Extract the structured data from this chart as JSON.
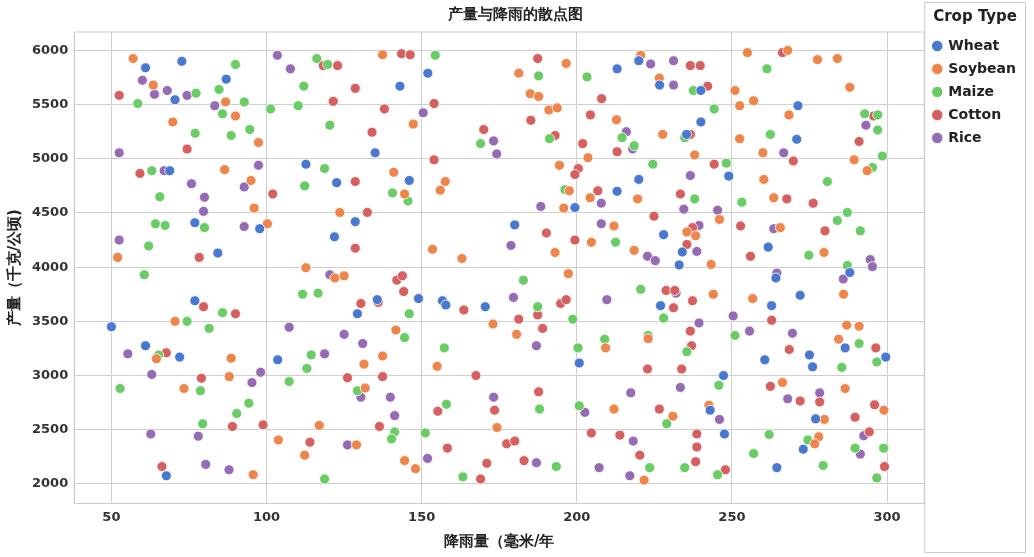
{
  "chart_data": {
    "type": "scatter",
    "title": "产量与降雨的散点图",
    "xlabel": "降雨量（毫米/年",
    "ylabel": "产量（千克/公顷)",
    "legend_title": "Crop Type",
    "legend": "top right",
    "grid": true,
    "marker": "circle",
    "xlim": [
      38,
      312
    ],
    "xticks": [
      50,
      100,
      150,
      200,
      250,
      300
    ],
    "ylim": [
      1820,
      6170
    ],
    "yticks": [
      2000,
      2500,
      3000,
      3500,
      4000,
      4500,
      5000,
      5500,
      6000
    ],
    "series": [
      {
        "name": "Wheat",
        "color": "#4878d0",
        "x": [
          50,
          61,
          72.7,
          76.9,
          76.9,
          61,
          72,
          67.7,
          68.8,
          70.5,
          84.3,
          87,
          97.8,
          103.6,
          112.7,
          121.9,
          122.6,
          128.6,
          129.3,
          135,
          135.7,
          143,
          146,
          149,
          152,
          156.7,
          157.8,
          170.5,
          180,
          199.4,
          200.8,
          213,
          213,
          220,
          220,
          228,
          233,
          234,
          227,
          226.7,
          235.4,
          240,
          240,
          243,
          247.6,
          247.3,
          249,
          261.7,
          262.8,
          264.2,
          260.6,
          264.5,
          270.9,
          271.3,
          272,
          273,
          275,
          276,
          277,
          286.5,
          288,
          299.6
        ],
        "values": [
          3450,
          5840,
          5900,
          3690,
          4410,
          3275,
          3170,
          2075,
          4890,
          5545,
          4130,
          5735,
          4355,
          3145,
          4950,
          4280,
          4780,
          4420,
          3570,
          5055,
          3700,
          5670,
          4800,
          3710,
          5790,
          3690,
          3650,
          3635,
          4390,
          4550,
          3115,
          5830,
          4700,
          4810,
          5905,
          4300,
          4020,
          4140,
          3645,
          5680,
          5225,
          5630,
          5340,
          2680,
          2460,
          3000,
          4840,
          4185,
          3645,
          3900,
          3145,
          2150,
          5180,
          5490,
          3740,
          2320,
          3190,
          3080,
          2600,
          3255,
          3950,
          3170
        ]
      },
      {
        "name": "Soybean",
        "color": "#ee854a",
        "x": [
          52,
          57,
          63.5,
          69.8,
          86.8,
          90,
          97.4,
          86.5,
          95,
          96,
          100.3,
          123.6,
          137.4,
          147.3,
          141,
          144.5,
          157.6,
          156,
          153.5,
          163,
          181.3,
          185,
          187.7,
          191,
          193.7,
          196.6,
          194.4,
          197.6,
          195.8,
          203.6,
          204.3,
          212.8,
          212,
          204.7,
          193,
          220.6,
          226.6,
          227.7,
          238,
          219.6,
          246,
          235.5,
          238.3,
          218.5,
          243.3,
          251,
          255,
          268,
          252.5,
          257,
          268.4,
          252.5,
          260,
          277.6,
          284,
          288,
          289.4,
          293.6,
          260.3,
          263.5,
          265.6,
          279.7,
          70.5,
          88.6,
          88,
          73.4,
          64.5,
          95.7,
          117,
          103.8,
          112.3,
          112.7,
          122,
          125,
          129,
          141.7,
          137.4,
          131.4,
          131.8,
          144.5,
          148,
          155,
          173,
          180.6,
          174.3,
          197.3,
          209.3,
          212,
          244,
          256.7,
          286,
          287,
          291,
          284.4,
          223,
          266.3,
          286.5,
          242.6,
          231,
          299,
          279.8,
          278,
          276.7,
          221.7
        ],
        "values": [
          4090,
          5925,
          5680,
          5340,
          5525,
          5395,
          5150,
          4900,
          4800,
          4545,
          4400,
          4505,
          5960,
          5320,
          4875,
          4675,
          4790,
          4710,
          4165,
          4080,
          5790,
          5600,
          5575,
          5450,
          5470,
          5880,
          4940,
          4705,
          4545,
          5010,
          4640,
          5360,
          4380,
          4230,
          4135,
          5955,
          5745,
          5225,
          5035,
          4630,
          4440,
          4325,
          4290,
          4155,
          4025,
          5630,
          5980,
          6000,
          5490,
          5535,
          5405,
          5185,
          5055,
          5915,
          5925,
          5660,
          4990,
          4890,
          4810,
          4640,
          4365,
          4135,
          3500,
          3160,
          2990,
          2880,
          3155,
          2085,
          2540,
          2405,
          2265,
          3995,
          3900,
          3920,
          2360,
          3420,
          3180,
          3105,
          2885,
          2215,
          2140,
          3085,
          3475,
          3380,
          2520,
          3940,
          3255,
          2690,
          3750,
          3710,
          3750,
          3465,
          3455,
          3335,
          3340,
          2935,
          2880,
          2725,
          2625,
          2680,
          2595,
          2435,
          2370,
          2035
        ]
      },
      {
        "name": "Maize",
        "color": "#6acc64",
        "x": [
          58.5,
          77.3,
          84.7,
          90,
          92.8,
          85.8,
          77,
          88.6,
          94.6,
          101.3,
          110.2,
          112,
          116.2,
          119.7,
          120.4,
          63,
          118.7,
          112.3,
          65.6,
          64.2,
          67.3,
          80,
          62,
          60.6,
          65.2,
          74.4,
          81.5,
          85.8,
          52.8,
          78.7,
          94.3,
          90.4,
          79.4,
          111.6,
          116.6,
          114.4,
          113,
          107.3,
          118.7,
          146,
          144.5,
          129.3,
          141.3,
          140.3,
          151.2,
          157.3,
          158,
          163.3,
          182.8,
          187.4,
          198.7,
          188,
          193.4,
          200.4,
          200.8,
          209,
          154.4,
          187.7,
          203.3,
          169,
          191.2,
          140.6,
          145.6,
          196.2,
          214.6,
          212.5,
          237.6,
          244.3,
          234.8,
          218.5,
          224.5,
          248.2,
          238,
          253.2,
          261.3,
          262.4,
          280.8,
          287.2,
          284,
          291.4,
          274.8,
          292.8,
          297,
          297,
          298.5,
          295.3,
          287.2,
          220.6,
          228,
          223,
          235.5,
          251,
          245.8,
          229,
          223.5,
          234.8,
          245.4,
          262,
          257,
          274.5,
          279.4,
          291,
          296.7,
          285.4,
          289.7,
          298.9,
          296.7
        ],
        "values": [
          5510,
          5605,
          5640,
          5870,
          5525,
          5415,
          5235,
          5215,
          5270,
          5460,
          5490,
          5670,
          5925,
          5870,
          5310,
          4890,
          4910,
          4750,
          4650,
          4400,
          4385,
          4365,
          4195,
          3930,
          3190,
          3500,
          3435,
          3580,
          2880,
          2860,
          2745,
          2650,
          2555,
          3750,
          3760,
          3190,
          3065,
          2945,
          2045,
          3570,
          3350,
          2860,
          2480,
          2415,
          2470,
          3255,
          2735,
          2065,
          3880,
          3635,
          3520,
          2690,
          2160,
          3255,
          2720,
          3335,
          5955,
          5765,
          5755,
          5140,
          5185,
          4685,
          4610,
          4715,
          5195,
          4230,
          5630,
          5460,
          5195,
          5120,
          4950,
          4960,
          4630,
          4600,
          5830,
          5225,
          4790,
          4505,
          4430,
          4335,
          4110,
          5415,
          5405,
          5265,
          5025,
          4920,
          4015,
          3795,
          3530,
          3370,
          3220,
          3370,
          2910,
          2555,
          2150,
          2150,
          2085,
          2455,
          2280,
          2405,
          2170,
          3295,
          3125,
          3075,
          2330,
          2330,
          2055
        ]
      },
      {
        "name": "Cotton",
        "color": "#d65f5f",
        "x": [
          52.5,
          74.4,
          59.2,
          102,
          118.3,
          122.9,
          128.6,
          121.5,
          128.6,
          128.6,
          78.3,
          143.5,
          146.3,
          138,
          154,
          134,
          154,
          132.5,
          170,
          187.4,
          208,
          204.4,
          185.2,
          193,
          201.9,
          213,
          200.5,
          199.4,
          206.8,
          190.2,
          199.4,
          236.6,
          239.8,
          242.2,
          266.3,
          236.6,
          244.3,
          233.4,
          224.9,
          237.3,
          235.5,
          252.8,
          256,
          269.8,
          267.7,
          276.2,
          280,
          291,
          295.7,
          79.7,
          90,
          67.7,
          79,
          89,
          98.9,
          66.3,
          114,
          126.1,
          142,
          143.8,
          144.2,
          130.4,
          136,
          163.6,
          181.3,
          187.4,
          189,
          194.8,
          196.6,
          167.5,
          137.4,
          187.7,
          173.5,
          155.2,
          136.4,
          158.3,
          177.4,
          180,
          171,
          169,
          183,
          204.7,
          213.9,
          228.8,
          231.6,
          237.3,
          231.2,
          236.6,
          237,
          222.8,
          233.8,
          262.8,
          268.5,
          262.4,
          272,
          278.3,
          226.6,
          289.7,
          296,
          296.4,
          294.3,
          238.7,
          238.7,
          220.3,
          238.3,
          247.9,
          299.2
        ],
        "values": [
          5585,
          5090,
          4865,
          4675,
          5860,
          5860,
          5650,
          5530,
          4790,
          4175,
          4090,
          5970,
          5960,
          5460,
          5510,
          5245,
          4990,
          4505,
          5270,
          5925,
          5555,
          5405,
          5355,
          5215,
          5140,
          5065,
          4910,
          4855,
          4705,
          4315,
          4250,
          5860,
          5860,
          5670,
          5980,
          5225,
          4950,
          4675,
          4470,
          4365,
          4210,
          4380,
          4100,
          4980,
          4630,
          4590,
          4335,
          5160,
          5395,
          3635,
          3570,
          3210,
          2975,
          2530,
          2545,
          2160,
          2385,
          2980,
          3880,
          3920,
          3775,
          3665,
          3675,
          3605,
          3520,
          3560,
          3435,
          3665,
          3700,
          3000,
          2990,
          2850,
          2680,
          2670,
          2530,
          2330,
          2370,
          2395,
          2190,
          2045,
          2215,
          2470,
          2450,
          3785,
          3785,
          3690,
          3625,
          3410,
          3275,
          3060,
          3060,
          3510,
          3240,
          2900,
          2765,
          2755,
          2690,
          2615,
          2730,
          3255,
          2480,
          2460,
          2340,
          2265,
          2205,
          2130,
          2160
        ]
      },
      {
        "name": "Rice",
        "color": "#956cb4",
        "x": [
          60,
          63.9,
          68,
          74.4,
          83.3,
          103.5,
          107.7,
          52.5,
          67,
          75.8,
          80,
          79.7,
          92.8,
          97.4,
          92.8,
          52.5,
          150.5,
          173.2,
          174.2,
          188.4,
          178.8,
          207.9,
          207.9,
          223.8,
          231.2,
          231.2,
          218,
          216,
          236.6,
          234.5,
          245.4,
          239.4,
          222.8,
          225.3,
          238.7,
          263.5,
          266.7,
          293.2,
          294.6,
          295.3,
          55.3,
          63,
          62.7,
          78,
          80.4,
          87.9,
          95.3,
          98.1,
          107.3,
          120.4,
          118.7,
          125,
          126.1,
          131,
          130.4,
          139.9,
          141.3,
          179.6,
          187,
          209.7,
          173.2,
          151.9,
          187,
          217.4,
          202.6,
          207.2,
          218.2,
          217.1,
          232,
          239.4,
          250.4,
          255.7,
          269.5,
          264.5,
          233.4,
          246,
          268,
          278.3,
          292.5,
          291.4,
          285.9
        ],
        "values": [
          5725,
          5595,
          5630,
          5585,
          5490,
          5955,
          5830,
          5055,
          4890,
          4770,
          4645,
          4515,
          4740,
          4940,
          4375,
          4250,
          5425,
          5165,
          5045,
          4560,
          4200,
          4590,
          4400,
          5875,
          5905,
          5680,
          5090,
          5250,
          4845,
          4535,
          4525,
          4385,
          4100,
          4060,
          4145,
          4355,
          5055,
          5310,
          4070,
          4005,
          3200,
          3010,
          2460,
          2440,
          2180,
          2130,
          2935,
          3030,
          3445,
          3930,
          3200,
          3380,
          2360,
          3295,
          2800,
          2800,
          2630,
          3720,
          3275,
          3700,
          2800,
          2235,
          2195,
          2840,
          2660,
          2150,
          2395,
          2075,
          3760,
          3485,
          3550,
          3410,
          3390,
          3945,
          2890,
          2595,
          2785,
          2840,
          2445,
          2275,
          3890
        ]
      }
    ]
  }
}
